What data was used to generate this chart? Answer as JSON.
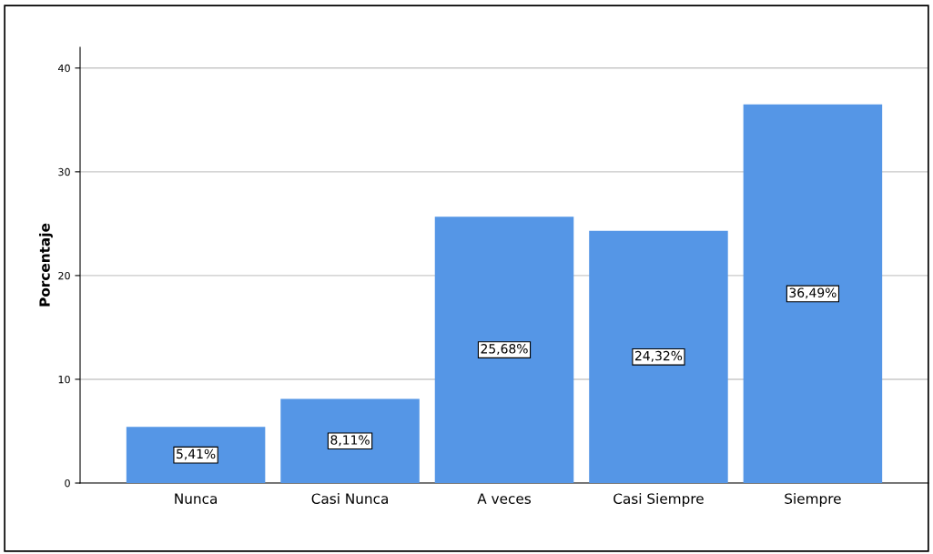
{
  "chart_data": {
    "type": "bar",
    "ylabel": "Porcentaje",
    "categories": [
      "Nunca",
      "Casi Nunca",
      "A veces",
      "Casi Siempre",
      "Siempre"
    ],
    "values": [
      5.41,
      8.11,
      25.68,
      24.32,
      36.49
    ],
    "value_labels": [
      "5,41%",
      "8,11%",
      "25,68%",
      "24,32%",
      "36,49%"
    ],
    "color": "#5596e6",
    "ylim": [
      0,
      42
    ],
    "yticks": [
      0,
      10,
      20,
      30,
      40
    ],
    "grid": "y"
  }
}
